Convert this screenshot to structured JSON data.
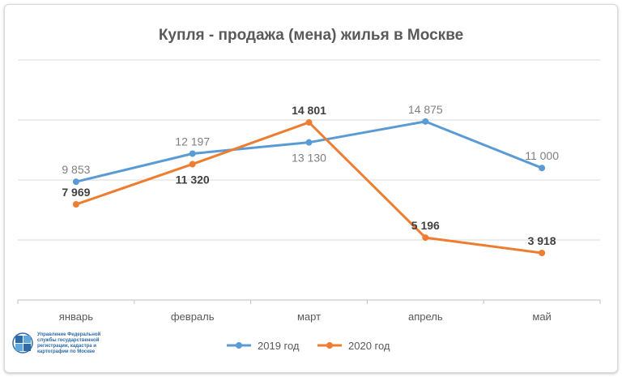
{
  "chart_data": {
    "type": "line",
    "title": "Купля - продажа (мена) жилья в Москве",
    "xlabel": "",
    "ylabel": "",
    "categories": [
      "январь",
      "февраль",
      "март",
      "апрель",
      "май"
    ],
    "series": [
      {
        "name": "2019 год",
        "color": "#5b9bd5",
        "values": [
          9853,
          12197,
          13130,
          14875,
          11000
        ],
        "labels": [
          "9 853",
          "12 197",
          "13 130",
          "14 875",
          "11 000"
        ],
        "label_style": "normal",
        "label_color": "#7f7f7f"
      },
      {
        "name": "2020 год",
        "color": "#ed7d31",
        "values": [
          7969,
          11320,
          14801,
          5196,
          3918
        ],
        "labels": [
          "7 969",
          "11 320",
          "14 801",
          "5 196",
          "3 918"
        ],
        "label_style": "bold",
        "label_color": "#404040"
      }
    ],
    "ylim": [
      0,
      20000
    ],
    "grid": true,
    "legend": "bottom"
  },
  "logo": {
    "lines": [
      "Управление Федеральной",
      "службы государственной",
      "регистрации, кадастра и",
      "картографии по Москве"
    ]
  }
}
